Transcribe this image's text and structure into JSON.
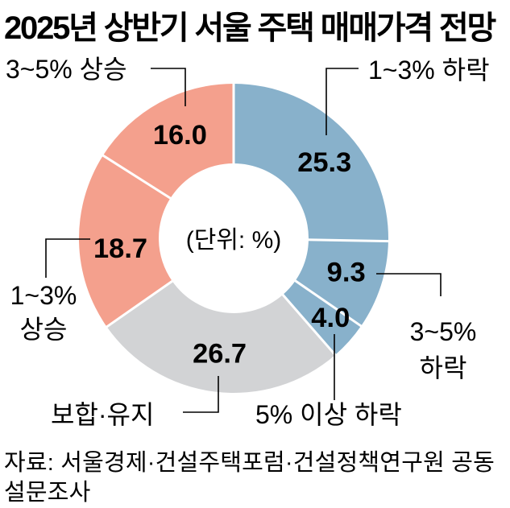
{
  "title": "2025년 상반기 서울 주택 매매가격 전망",
  "chart_data": {
    "type": "pie",
    "subtype": "donut",
    "unit_label": "(단위: %)",
    "direction": "clockwise",
    "start_angle_deg": 0,
    "segments": [
      {
        "label": "1~3% 하락",
        "value": 25.3,
        "color": "#88B1CB"
      },
      {
        "label": "3~5% 하락",
        "value": 9.3,
        "color": "#88B1CB"
      },
      {
        "label": "5% 이상 하락",
        "value": 4.0,
        "color": "#88B1CB"
      },
      {
        "label": "보합·유지",
        "value": 26.7,
        "color": "#D2D3D5"
      },
      {
        "label": "1~3% 상승",
        "value": 18.7,
        "color": "#F4A08D"
      },
      {
        "label": "3~5% 상승",
        "value": 16.0,
        "color": "#F4A08D"
      }
    ]
  },
  "callout_labels": {
    "rise_3_5": "3~5% 상승",
    "fall_1_3": "1~3% 하락",
    "fall_3_5": [
      "3~5%",
      "하락"
    ],
    "fall_5_plus": "5% 이상 하락",
    "flat": "보합·유지",
    "rise_1_3": [
      "1~3%",
      "상승"
    ]
  },
  "source": {
    "line1": "자료: 서울경제·건설주택포럼·건설정책연구원 공동",
    "line2": "설문조사"
  }
}
